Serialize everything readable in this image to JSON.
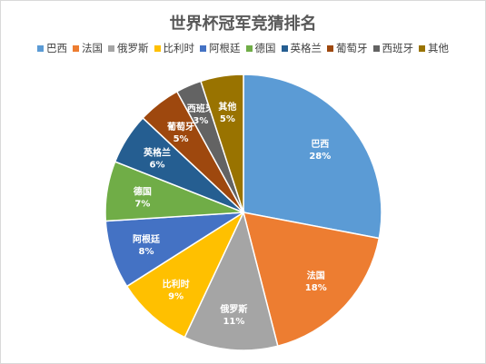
{
  "chart_data": {
    "type": "pie",
    "title": "世界杯冠军竞猜排名",
    "legend_position": "top",
    "categories": [
      "巴西",
      "法国",
      "俄罗斯",
      "比利时",
      "阿根廷",
      "德国",
      "英格兰",
      "葡萄牙",
      "西班牙",
      "其他"
    ],
    "values": [
      28,
      18,
      11,
      9,
      8,
      7,
      6,
      5,
      3,
      5
    ],
    "value_labels": [
      "28%",
      "18%",
      "11%",
      "9%",
      "8%",
      "7%",
      "6%",
      "5%",
      "3%",
      "5%"
    ],
    "colors": [
      "#5b9bd5",
      "#ed7d31",
      "#a5a5a5",
      "#ffc000",
      "#4472c4",
      "#70ad47",
      "#255e91",
      "#9e480e",
      "#636363",
      "#997300"
    ]
  }
}
